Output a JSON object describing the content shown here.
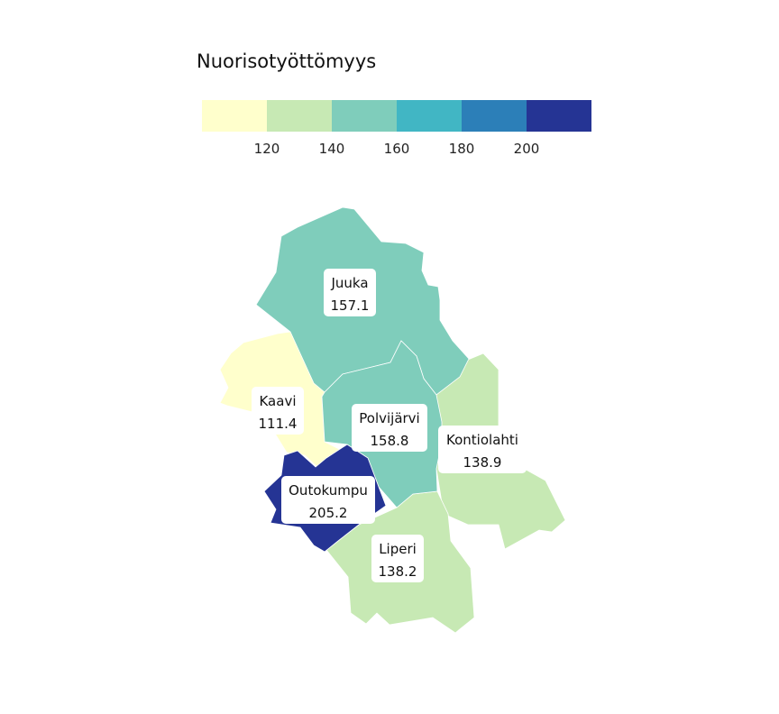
{
  "legend": {
    "title": "Nuorisotyöttömyys",
    "thresholds": [
      120,
      140,
      160,
      180,
      200
    ],
    "colors": [
      "#ffffcc",
      "#c7e9b4",
      "#7fcdbb",
      "#41b6c4",
      "#2c7fb8",
      "#253494"
    ]
  },
  "regions": [
    {
      "id": "juuka",
      "name": "Juuka",
      "value": 157.1
    },
    {
      "id": "kaavi",
      "name": "Kaavi",
      "value": 111.4
    },
    {
      "id": "polvijarvi",
      "name": "Polvijärvi",
      "value": 158.8
    },
    {
      "id": "kontiolahti",
      "name": "Kontiolahti",
      "value": 138.9
    },
    {
      "id": "outokumpu",
      "name": "Outokumpu",
      "value": 205.2
    },
    {
      "id": "liperi",
      "name": "Liperi",
      "value": 138.2
    }
  ]
}
